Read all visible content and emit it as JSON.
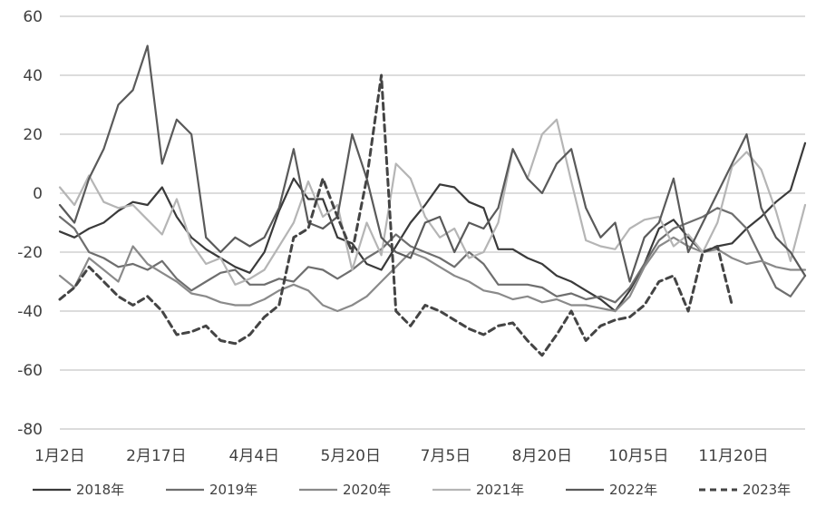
{
  "chart_data": {
    "type": "line",
    "title": "",
    "xlabel": "",
    "ylabel": "",
    "ylim": [
      -80,
      60
    ],
    "y_ticks": [
      60,
      40,
      20,
      0,
      -20,
      -40,
      -60,
      -80
    ],
    "y_tick_labels": [
      "60",
      "40",
      "20",
      "0",
      "-20",
      "-40",
      "-60",
      "-80"
    ],
    "x_range": [
      1,
      52
    ],
    "x_ticks": [
      {
        "x": 1,
        "label": "1月2日"
      },
      {
        "x": 7.6,
        "label": "2月17日"
      },
      {
        "x": 14.3,
        "label": "4月4日"
      },
      {
        "x": 20.9,
        "label": "5月20日"
      },
      {
        "x": 27.4,
        "label": "7月5日"
      },
      {
        "x": 34.0,
        "label": "8月20日"
      },
      {
        "x": 40.6,
        "label": "10月5日"
      },
      {
        "x": 47.1,
        "label": "11月20日"
      }
    ],
    "grid": true,
    "legend_position": "bottom",
    "series": [
      {
        "name": "2018年",
        "color": "#3a3a3a",
        "width": 2.2,
        "dash": "",
        "x": [
          1,
          2,
          3,
          4,
          5,
          6,
          7,
          8,
          9,
          10,
          11,
          12,
          13,
          14,
          15,
          16,
          17,
          18,
          19,
          20,
          21,
          22,
          23,
          24,
          25,
          26,
          27,
          28,
          29,
          30,
          31,
          32,
          33,
          34,
          35,
          36,
          37,
          38,
          39,
          40,
          41,
          42,
          43,
          44,
          45,
          46,
          47,
          48,
          49,
          50,
          51,
          52
        ],
        "values": [
          -13,
          -15,
          -12,
          -10,
          -6,
          -3,
          -4,
          2,
          -8,
          -15,
          -19,
          -22,
          -25,
          -27,
          -20,
          -6,
          5,
          -2,
          -2,
          -15,
          -17,
          -24,
          -26,
          -18,
          -10,
          -4,
          3,
          2,
          -3,
          -5,
          -19,
          -19,
          -22,
          -24,
          -28,
          -30,
          -33,
          -36,
          -40,
          -33,
          -24,
          -12,
          -9,
          -15,
          -20,
          -18,
          -17,
          -12,
          -8,
          -3,
          1,
          17
        ]
      },
      {
        "name": "2019年",
        "color": "#6e6e6e",
        "width": 2.2,
        "dash": "",
        "x": [
          1,
          2,
          3,
          4,
          5,
          6,
          7,
          8,
          9,
          10,
          11,
          12,
          13,
          14,
          15,
          16,
          17,
          18,
          19,
          20,
          21,
          22,
          23,
          24,
          25,
          26,
          27,
          28,
          29,
          30,
          31,
          32,
          33,
          34,
          35,
          36,
          37,
          38,
          39,
          40,
          41,
          42,
          43,
          44,
          45,
          46,
          47,
          48,
          49,
          50,
          51,
          52
        ],
        "values": [
          -8,
          -12,
          -20,
          -22,
          -25,
          -24,
          -26,
          -23,
          -29,
          -33,
          -30,
          -27,
          -26,
          -31,
          -31,
          -29,
          -30,
          -25,
          -26,
          -29,
          -26,
          -22,
          -19,
          -14,
          -18,
          -20,
          -22,
          -25,
          -20,
          -24,
          -31,
          -31,
          -31,
          -32,
          -35,
          -34,
          -36,
          -35,
          -37,
          -32,
          -24,
          -16,
          -12,
          -10,
          -8,
          -5,
          -7,
          -12,
          -22,
          -32,
          -35,
          -28
        ]
      },
      {
        "name": "2020年",
        "color": "#8a8a8a",
        "width": 2.2,
        "dash": "",
        "x": [
          1,
          2,
          3,
          4,
          5,
          6,
          7,
          8,
          9,
          10,
          11,
          12,
          13,
          14,
          15,
          16,
          17,
          18,
          19,
          20,
          21,
          22,
          23,
          24,
          25,
          26,
          27,
          28,
          29,
          30,
          31,
          32,
          33,
          34,
          35,
          36,
          37,
          38,
          39,
          40,
          41,
          42,
          43,
          44,
          45,
          46,
          47,
          48,
          49,
          50,
          51,
          52
        ],
        "values": [
          -28,
          -32,
          -22,
          -26,
          -30,
          -18,
          -24,
          -27,
          -30,
          -34,
          -35,
          -37,
          -38,
          -38,
          -36,
          -33,
          -31,
          -33,
          -38,
          -40,
          -38,
          -35,
          -30,
          -25,
          -20,
          -22,
          -25,
          -28,
          -30,
          -33,
          -34,
          -36,
          -35,
          -37,
          -36,
          -38,
          -38,
          -39,
          -40,
          -35,
          -25,
          -18,
          -15,
          -18,
          -20,
          -19,
          -22,
          -24,
          -23,
          -25,
          -26,
          -26
        ]
      },
      {
        "name": "2021年",
        "color": "#b5b5b5",
        "width": 2.2,
        "dash": "",
        "x": [
          1,
          2,
          3,
          4,
          5,
          6,
          7,
          8,
          9,
          10,
          11,
          12,
          13,
          14,
          15,
          16,
          17,
          18,
          19,
          20,
          21,
          22,
          23,
          24,
          25,
          26,
          27,
          28,
          29,
          30,
          31,
          32,
          33,
          34,
          35,
          36,
          37,
          38,
          39,
          40,
          41,
          42,
          43,
          44,
          45,
          46,
          47,
          48,
          49,
          50,
          51,
          52
        ],
        "values": [
          2,
          -4,
          6,
          -3,
          -5,
          -4,
          -9,
          -14,
          -2,
          -17,
          -24,
          -22,
          -31,
          -29,
          -26,
          -18,
          -10,
          4,
          -8,
          -4,
          -26,
          -10,
          -21,
          10,
          5,
          -8,
          -15,
          -12,
          -22,
          -20,
          -10,
          15,
          5,
          20,
          25,
          4,
          -16,
          -18,
          -19,
          -12,
          -9,
          -8,
          -18,
          -14,
          -20,
          -10,
          9,
          14,
          8,
          -6,
          -23,
          -4
        ]
      },
      {
        "name": "2022年",
        "color": "#5a5a5a",
        "width": 2.2,
        "dash": "",
        "x": [
          1,
          2,
          3,
          4,
          5,
          6,
          7,
          8,
          9,
          10,
          11,
          12,
          13,
          14,
          15,
          16,
          17,
          18,
          19,
          20,
          21,
          22,
          23,
          24,
          25,
          26,
          27,
          28,
          29,
          30,
          31,
          32,
          33,
          34,
          35,
          36,
          37,
          38,
          39,
          40,
          41,
          42,
          43,
          44,
          45,
          46,
          47,
          48,
          49,
          50,
          51,
          52
        ],
        "values": [
          -4,
          -10,
          5,
          15,
          30,
          35,
          50,
          10,
          25,
          20,
          -15,
          -20,
          -15,
          -18,
          -15,
          -5,
          15,
          -10,
          -12,
          -8,
          20,
          5,
          -15,
          -20,
          -22,
          -10,
          -8,
          -20,
          -10,
          -12,
          -5,
          15,
          5,
          0,
          10,
          15,
          -5,
          -15,
          -10,
          -30,
          -15,
          -10,
          5,
          -20,
          -10,
          0,
          10,
          20,
          -5,
          -15,
          -20,
          -28
        ]
      },
      {
        "name": "2023年",
        "color": "#444444",
        "width": 3,
        "dash": "7,5",
        "x": [
          1,
          2,
          3,
          4,
          5,
          6,
          7,
          8,
          9,
          10,
          11,
          12,
          13,
          14,
          15,
          16,
          17,
          18,
          19,
          20,
          21,
          22,
          23,
          24,
          25,
          26,
          27,
          28,
          29,
          30,
          31,
          32,
          33,
          34,
          35,
          36,
          37,
          38,
          39,
          40,
          41,
          42,
          43,
          44,
          45,
          46,
          47,
          48,
          49,
          50,
          51,
          52
        ],
        "values": [
          -36,
          -32,
          -25,
          -30,
          -35,
          -38,
          -35,
          -40,
          -48,
          -47,
          -45,
          -50,
          -51,
          -48,
          -42,
          -38,
          -15,
          -12,
          5,
          -8,
          -20,
          5,
          40,
          -40,
          -45,
          -38,
          -40,
          -43,
          -46,
          -48,
          -45,
          -44,
          -50,
          -55,
          -48,
          -40,
          -50,
          -45,
          -43,
          -42,
          -38,
          -30,
          -28,
          -40,
          -20,
          -18,
          -38,
          null,
          null,
          null,
          null,
          null
        ]
      }
    ]
  }
}
